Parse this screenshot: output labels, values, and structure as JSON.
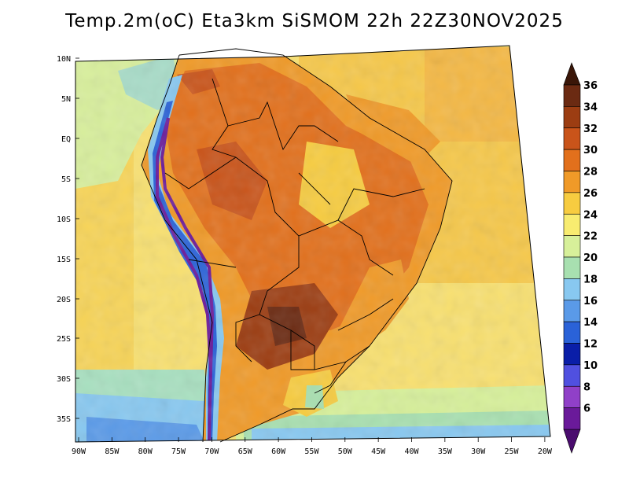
{
  "title": "Temp.2m(oC) Eta3km SiSMOM 22h 22Z30NOV2025",
  "lat_labels": [
    "10N",
    "5N",
    "EQ",
    "5S",
    "10S",
    "15S",
    "20S",
    "25S",
    "30S",
    "35S"
  ],
  "lon_labels": [
    "90W",
    "85W",
    "80W",
    "75W",
    "70W",
    "65W",
    "60W",
    "55W",
    "50W",
    "45W",
    "40W",
    "35W",
    "30W",
    "25W",
    "20W"
  ],
  "colorbar": {
    "labels": [
      "36",
      "34",
      "32",
      "30",
      "28",
      "26",
      "24",
      "22",
      "20",
      "18",
      "16",
      "14",
      "12",
      "10",
      "8",
      "6"
    ],
    "colors": [
      "#6b2a12",
      "#9c3d12",
      "#c9541a",
      "#e2701c",
      "#f09a28",
      "#f7cc40",
      "#f8ec70",
      "#d7f09a",
      "#a8e0b0",
      "#88c8f0",
      "#5a9ae8",
      "#2a62d8",
      "#0a1ea8",
      "#5050e0",
      "#9040c8",
      "#6a1a9a"
    ]
  },
  "icons": {
    "colorbar_top": "triangle-up",
    "colorbar_bottom": "triangle-down"
  }
}
